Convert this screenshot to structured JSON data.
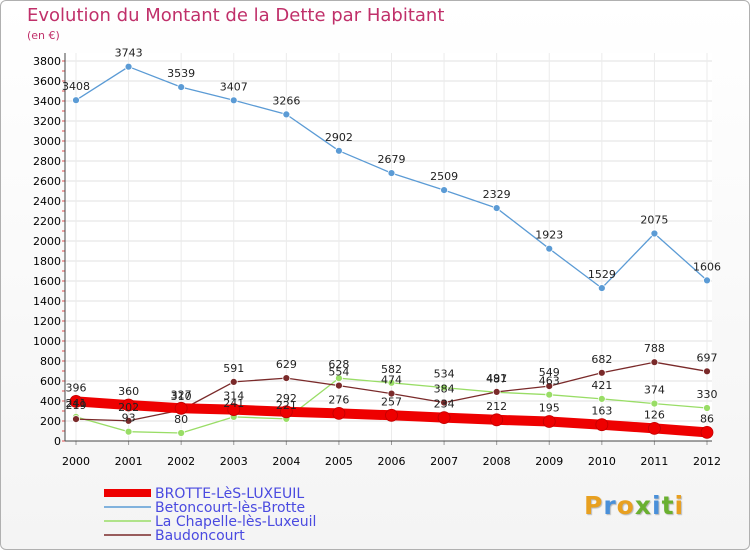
{
  "header": {
    "title": "Evolution du Montant de la Dette par Habitant",
    "unit": "(en €)"
  },
  "logo": {
    "text": "Proxiti",
    "letter_colors": [
      "#e8a020",
      "#4a90d9",
      "#e8a020",
      "#6ab030",
      "#4a90d9",
      "#6ab030",
      "#e8a020"
    ]
  },
  "chart_data": {
    "type": "line",
    "title": "Evolution du Montant de la Dette par Habitant",
    "ylabel": "(en €)",
    "xlabel": "",
    "x": [
      "2000",
      "2001",
      "2002",
      "2003",
      "2004",
      "2005",
      "2006",
      "2007",
      "2008",
      "2009",
      "2010",
      "2011",
      "2012"
    ],
    "ylim": [
      0,
      3800
    ],
    "yticks": [
      0,
      200,
      400,
      600,
      800,
      1000,
      1200,
      1400,
      1600,
      1800,
      2000,
      2200,
      2400,
      2600,
      2800,
      3000,
      3200,
      3400,
      3600,
      3800
    ],
    "grid": true,
    "legend_position": "bottom-left",
    "series": [
      {
        "name": "BROTTE-LèS-LUXEUIL",
        "color": "#ee0000",
        "values": [
          396,
          360,
          327,
          314,
          292,
          276,
          257,
          234,
          212,
          195,
          163,
          126,
          86
        ]
      },
      {
        "name": "Betoncourt-lès-Brotte",
        "color": "#5b9bd5",
        "values": [
          3408,
          3743,
          3539,
          3407,
          3266,
          2902,
          2679,
          2509,
          2329,
          1923,
          1529,
          2075,
          1606
        ]
      },
      {
        "name": "La Chapelle-lès-Luxeuil",
        "color": "#99dd66",
        "values": [
          241,
          93,
          80,
          241,
          221,
          628,
          582,
          534,
          487,
          463,
          421,
          374,
          330
        ]
      },
      {
        "name": "Baudoncourt",
        "color": "#7a2a2a",
        "values": [
          219,
          202,
          310,
          591,
          629,
          554,
          474,
          384,
          491,
          549,
          682,
          788,
          697
        ]
      }
    ]
  }
}
